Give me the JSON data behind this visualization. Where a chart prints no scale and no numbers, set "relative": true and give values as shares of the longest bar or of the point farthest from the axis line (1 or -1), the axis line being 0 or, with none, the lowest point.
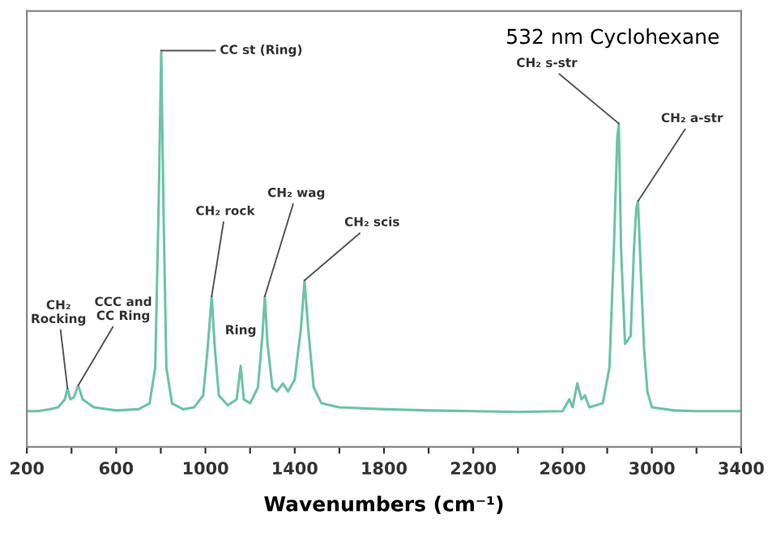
{
  "chart_data": {
    "type": "line",
    "title": "532 nm Cyclohexane",
    "xlabel": "Wavenumbers (cm⁻¹)",
    "relative": true,
    "tick_labels": "x",
    "grid": false,
    "legend": false,
    "xlim": [
      200,
      3400
    ],
    "xticks": [
      200,
      {
        "value": 400,
        "label": null
      },
      600,
      {
        "value": 800,
        "label": null
      },
      1000,
      {
        "value": 1200,
        "label": null
      },
      1400,
      {
        "value": 1600,
        "label": null
      },
      1800,
      {
        "value": 2000,
        "label": null
      },
      2200,
      {
        "value": 2400,
        "label": null
      },
      2600,
      {
        "value": 2800,
        "label": null
      },
      3000,
      {
        "value": 3200,
        "label": null
      },
      3400
    ],
    "series": [
      {
        "color": "#6cc4a4",
        "x": [
          200,
          250,
          300,
          340,
          370,
          382,
          395,
          410,
          430,
          450,
          500,
          600,
          700,
          750,
          775,
          790,
          802,
          812,
          825,
          850,
          900,
          950,
          990,
          1010,
          1028,
          1042,
          1060,
          1100,
          1140,
          1158,
          1172,
          1200,
          1235,
          1255,
          1266,
          1278,
          1300,
          1320,
          1347,
          1370,
          1400,
          1428,
          1444,
          1460,
          1485,
          1520,
          1600,
          1800,
          2000,
          2200,
          2400,
          2600,
          2630,
          2645,
          2666,
          2685,
          2700,
          2720,
          2780,
          2810,
          2830,
          2845,
          2852,
          2862,
          2880,
          2893,
          2905,
          2920,
          2930,
          2938,
          2950,
          2965,
          2980,
          3000,
          3100,
          3200,
          3400
        ],
        "values": [
          0.09,
          0.09,
          0.095,
          0.1,
          0.12,
          0.147,
          0.12,
          0.125,
          0.155,
          0.12,
          0.1,
          0.092,
          0.095,
          0.11,
          0.2,
          0.6,
          1.0,
          0.6,
          0.2,
          0.11,
          0.095,
          0.1,
          0.13,
          0.25,
          0.38,
          0.25,
          0.13,
          0.105,
          0.12,
          0.204,
          0.12,
          0.11,
          0.15,
          0.28,
          0.38,
          0.26,
          0.15,
          0.14,
          0.16,
          0.14,
          0.17,
          0.3,
          0.42,
          0.3,
          0.15,
          0.11,
          0.1,
          0.095,
          0.092,
          0.09,
          0.088,
          0.09,
          0.12,
          0.1,
          0.16,
          0.12,
          0.13,
          0.1,
          0.11,
          0.2,
          0.5,
          0.78,
          0.816,
          0.5,
          0.26,
          0.27,
          0.28,
          0.5,
          0.6,
          0.62,
          0.45,
          0.25,
          0.14,
          0.1,
          0.092,
          0.09,
          0.09
        ]
      }
    ],
    "annotations": [
      {
        "text": "CH₂\nRocking",
        "x": 382,
        "y": 0.147
      },
      {
        "text": "CCC and\nCC Ring",
        "x": 430,
        "y": 0.155
      },
      {
        "text": "CC st (Ring)",
        "x": 802,
        "y": 1.0
      },
      {
        "text": "CH₂ rock",
        "x": 1028,
        "y": 0.38
      },
      {
        "text": "Ring",
        "x": 1158,
        "y": 0.204
      },
      {
        "text": "CH₂ wag",
        "x": 1266,
        "y": 0.38
      },
      {
        "text": "CH₂ scis",
        "x": 1444,
        "y": 0.42
      },
      {
        "text": "CH₂ s-str",
        "x": 2852,
        "y": 0.816
      },
      {
        "text": "CH₂ a-str",
        "x": 2938,
        "y": 0.62
      }
    ]
  }
}
